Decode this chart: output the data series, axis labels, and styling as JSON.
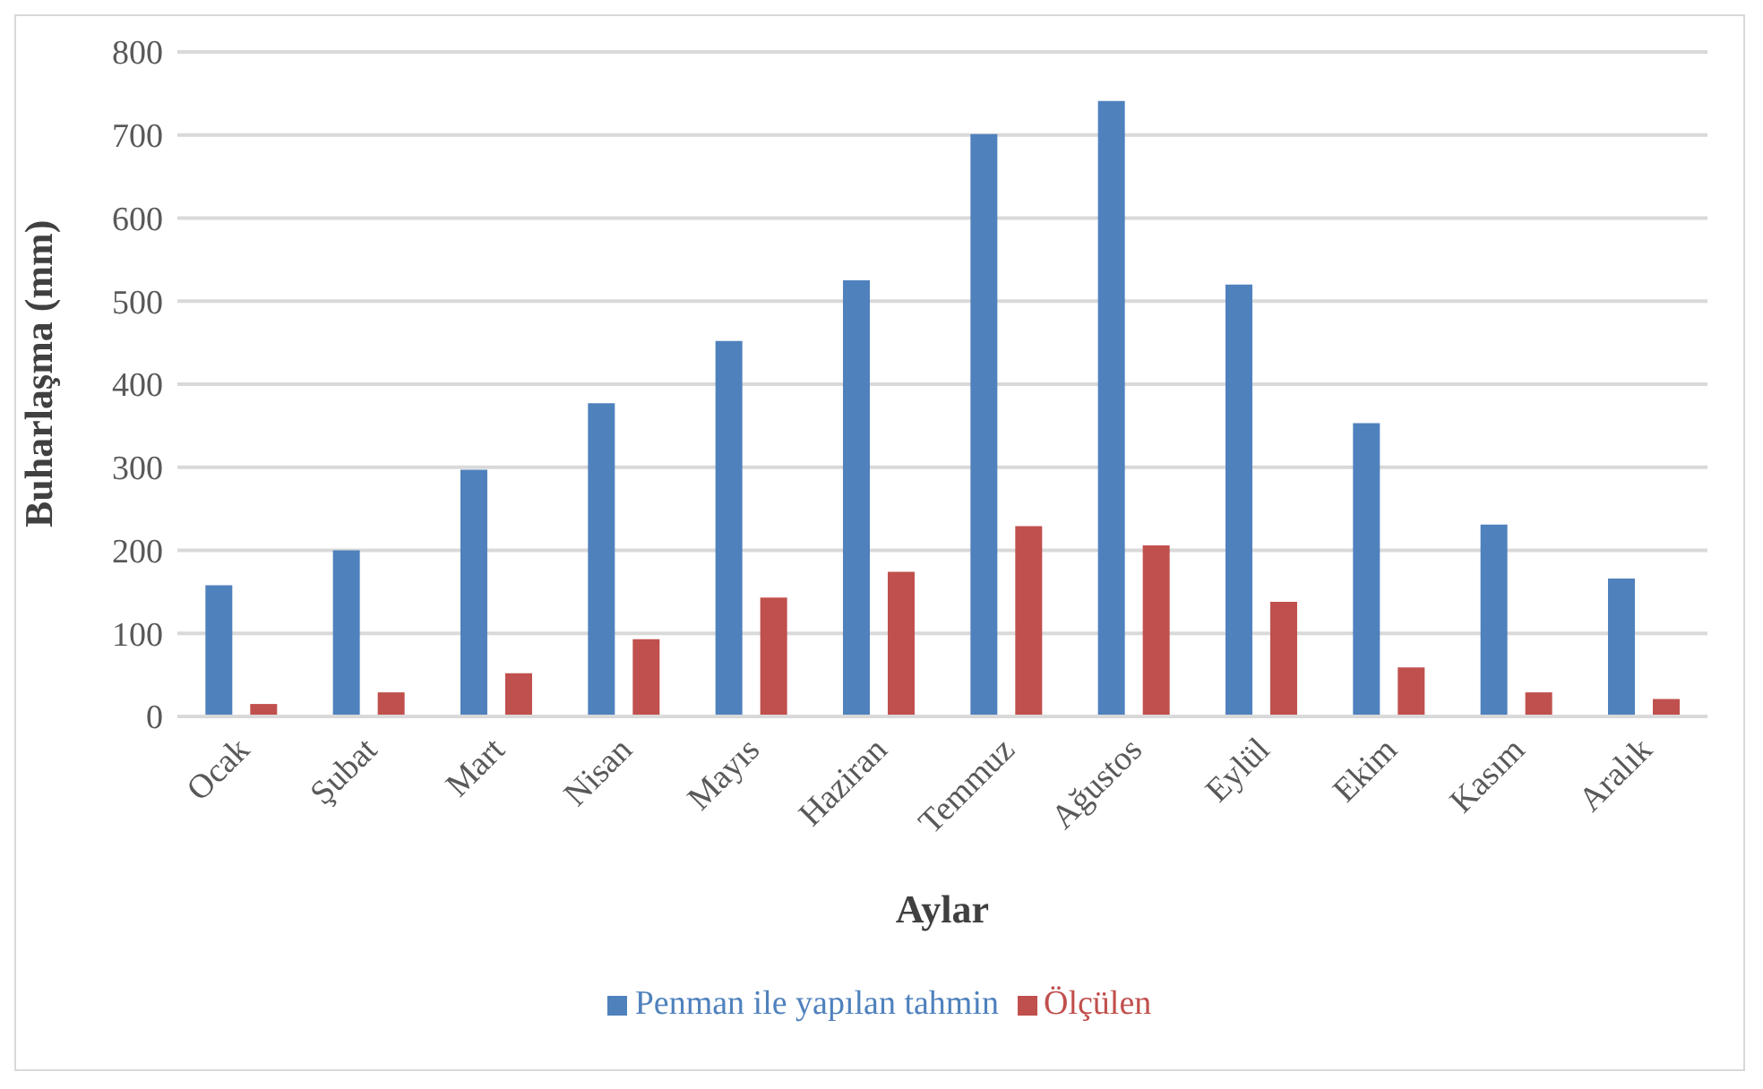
{
  "chart_data": {
    "type": "bar",
    "xlabel": "Aylar",
    "ylabel": "Buharlaşma (mm)",
    "categories": [
      "Ocak",
      "Şubat",
      "Mart",
      "Nisan",
      "Mayıs",
      "Haziran",
      "Temmuz",
      "Ağustos",
      "Eylül",
      "Ekim",
      "Kasım",
      "Aralık"
    ],
    "series": [
      {
        "name": "Penman ile yapılan tahmin",
        "color": "#4f81bd",
        "values": [
          158,
          200,
          297,
          377,
          452,
          525,
          701,
          741,
          520,
          353,
          231,
          166
        ]
      },
      {
        "name": "Ölçülen",
        "color": "#c0504d",
        "values": [
          15,
          29,
          52,
          93,
          143,
          174,
          229,
          206,
          138,
          59,
          29,
          21
        ]
      }
    ],
    "ylim": [
      0,
      800
    ],
    "yticks": [
      0,
      100,
      200,
      300,
      400,
      500,
      600,
      700,
      800
    ],
    "grid": "y",
    "legend": "bottom"
  }
}
